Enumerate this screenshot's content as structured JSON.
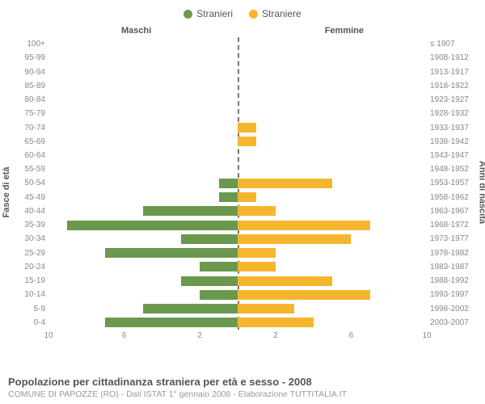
{
  "legend": {
    "male": {
      "label": "Stranieri",
      "color": "#6a994e"
    },
    "female": {
      "label": "Straniere",
      "color": "#f5b62e"
    }
  },
  "section_labels": {
    "left": "Maschi",
    "right": "Femmine"
  },
  "y_labels": {
    "left": "Fasce di età",
    "right": "Anni di nascita"
  },
  "x_axis": {
    "max": 10,
    "ticks_left": [
      10,
      6,
      2
    ],
    "ticks_right": [
      2,
      6,
      10
    ]
  },
  "footer": {
    "title": "Popolazione per cittadinanza straniera per età e sesso - 2008",
    "sub": "COMUNE DI PAPOZZE (RO) - Dati ISTAT 1° gennaio 2008 - Elaborazione TUTTITALIA.IT"
  },
  "colors": {
    "male_bar": "#6a994e",
    "female_bar": "#f5b62e",
    "centerline": "#777777",
    "text": "#555555",
    "muted": "#888888"
  },
  "rows": [
    {
      "age": "100+",
      "birth": "≤ 1907",
      "m": 0,
      "f": 0
    },
    {
      "age": "95-99",
      "birth": "1908-1912",
      "m": 0,
      "f": 0
    },
    {
      "age": "90-94",
      "birth": "1913-1917",
      "m": 0,
      "f": 0
    },
    {
      "age": "85-89",
      "birth": "1918-1922",
      "m": 0,
      "f": 0
    },
    {
      "age": "80-84",
      "birth": "1923-1927",
      "m": 0,
      "f": 0
    },
    {
      "age": "75-79",
      "birth": "1928-1932",
      "m": 0,
      "f": 0
    },
    {
      "age": "70-74",
      "birth": "1933-1937",
      "m": 0,
      "f": 1
    },
    {
      "age": "65-69",
      "birth": "1938-1942",
      "m": 0,
      "f": 1
    },
    {
      "age": "60-64",
      "birth": "1943-1947",
      "m": 0,
      "f": 0
    },
    {
      "age": "55-59",
      "birth": "1948-1952",
      "m": 0,
      "f": 0
    },
    {
      "age": "50-54",
      "birth": "1953-1957",
      "m": 1,
      "f": 5
    },
    {
      "age": "45-49",
      "birth": "1958-1962",
      "m": 1,
      "f": 1
    },
    {
      "age": "40-44",
      "birth": "1963-1967",
      "m": 5,
      "f": 2
    },
    {
      "age": "35-39",
      "birth": "1968-1972",
      "m": 9,
      "f": 7
    },
    {
      "age": "30-34",
      "birth": "1973-1977",
      "m": 3,
      "f": 6
    },
    {
      "age": "25-29",
      "birth": "1978-1982",
      "m": 7,
      "f": 2
    },
    {
      "age": "20-24",
      "birth": "1983-1987",
      "m": 2,
      "f": 2
    },
    {
      "age": "15-19",
      "birth": "1988-1992",
      "m": 3,
      "f": 5
    },
    {
      "age": "10-14",
      "birth": "1993-1997",
      "m": 2,
      "f": 7
    },
    {
      "age": "5-9",
      "birth": "1998-2002",
      "m": 5,
      "f": 3
    },
    {
      "age": "0-4",
      "birth": "2003-2007",
      "m": 7,
      "f": 4
    }
  ]
}
